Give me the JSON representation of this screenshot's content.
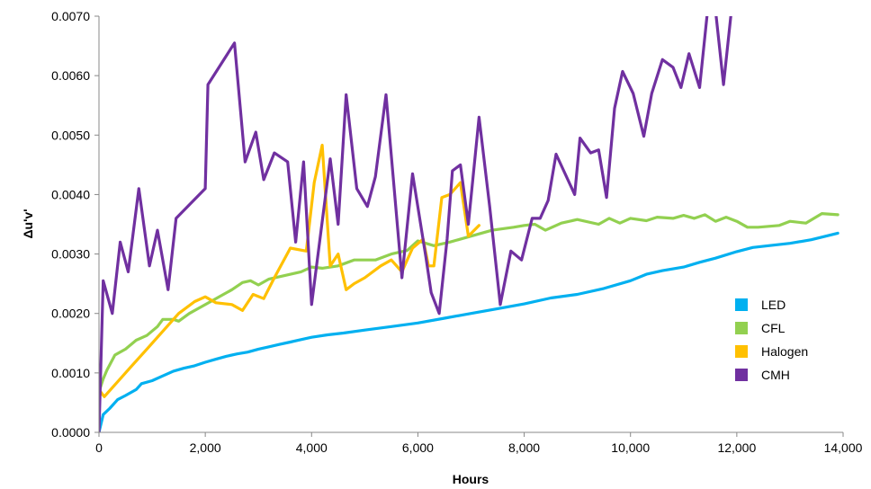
{
  "chart_data": {
    "type": "line",
    "title": "",
    "xlabel": "Hours",
    "ylabel": "Δu'v'",
    "xlim": [
      0,
      14000
    ],
    "ylim": [
      0,
      0.007
    ],
    "x_ticks": [
      0,
      2000,
      4000,
      6000,
      8000,
      10000,
      12000,
      14000
    ],
    "x_tick_labels": [
      "0",
      "2,000",
      "4,000",
      "6,000",
      "8,000",
      "10,000",
      "12,000",
      "14,000"
    ],
    "y_ticks": [
      0,
      0.001,
      0.002,
      0.003,
      0.004,
      0.005,
      0.006,
      0.007
    ],
    "y_tick_labels": [
      "0.0000",
      "0.0010",
      "0.0020",
      "0.0030",
      "0.0040",
      "0.0050",
      "0.0060",
      "0.0070"
    ],
    "grid": false,
    "legend_position": "bottom-right",
    "series": [
      {
        "name": "LED",
        "color": "#00b0f0",
        "points": [
          [
            0,
            0
          ],
          [
            80,
            0.0003
          ],
          [
            200,
            0.0004
          ],
          [
            350,
            0.00055
          ],
          [
            500,
            0.00062
          ],
          [
            700,
            0.00072
          ],
          [
            800,
            0.00082
          ],
          [
            1000,
            0.00087
          ],
          [
            1200,
            0.00095
          ],
          [
            1400,
            0.00103
          ],
          [
            1600,
            0.00108
          ],
          [
            1800,
            0.00112
          ],
          [
            2000,
            0.00118
          ],
          [
            2200,
            0.00123
          ],
          [
            2400,
            0.00128
          ],
          [
            2600,
            0.00132
          ],
          [
            2800,
            0.00135
          ],
          [
            3000,
            0.0014
          ],
          [
            3200,
            0.00144
          ],
          [
            3400,
            0.00148
          ],
          [
            3600,
            0.00152
          ],
          [
            3800,
            0.00156
          ],
          [
            4000,
            0.0016
          ],
          [
            4300,
            0.00164
          ],
          [
            4600,
            0.00167
          ],
          [
            5000,
            0.00172
          ],
          [
            5500,
            0.00178
          ],
          [
            6000,
            0.00184
          ],
          [
            6500,
            0.00192
          ],
          [
            7000,
            0.002
          ],
          [
            7500,
            0.00208
          ],
          [
            8000,
            0.00216
          ],
          [
            8500,
            0.00226
          ],
          [
            9000,
            0.00232
          ],
          [
            9500,
            0.00242
          ],
          [
            10000,
            0.00255
          ],
          [
            10300,
            0.00266
          ],
          [
            10600,
            0.00272
          ],
          [
            11000,
            0.00278
          ],
          [
            11300,
            0.00286
          ],
          [
            11600,
            0.00293
          ],
          [
            12000,
            0.00304
          ],
          [
            12300,
            0.00311
          ],
          [
            12600,
            0.00314
          ],
          [
            13000,
            0.00318
          ],
          [
            13400,
            0.00324
          ],
          [
            13900,
            0.00335
          ]
        ]
      },
      {
        "name": "CFL",
        "color": "#92d050",
        "points": [
          [
            0,
            0.00068
          ],
          [
            80,
            0.0009
          ],
          [
            150,
            0.00105
          ],
          [
            300,
            0.0013
          ],
          [
            500,
            0.0014
          ],
          [
            700,
            0.00155
          ],
          [
            900,
            0.00163
          ],
          [
            1100,
            0.00178
          ],
          [
            1200,
            0.0019
          ],
          [
            1400,
            0.0019
          ],
          [
            1500,
            0.00187
          ],
          [
            1700,
            0.002
          ],
          [
            1900,
            0.0021
          ],
          [
            2100,
            0.0022
          ],
          [
            2300,
            0.0023
          ],
          [
            2500,
            0.0024
          ],
          [
            2700,
            0.00252
          ],
          [
            2850,
            0.00255
          ],
          [
            3000,
            0.00248
          ],
          [
            3200,
            0.00258
          ],
          [
            3500,
            0.00264
          ],
          [
            3800,
            0.0027
          ],
          [
            4000,
            0.00278
          ],
          [
            4200,
            0.00276
          ],
          [
            4500,
            0.0028
          ],
          [
            4800,
            0.0029
          ],
          [
            5200,
            0.0029
          ],
          [
            5500,
            0.003
          ],
          [
            5800,
            0.00306
          ],
          [
            6000,
            0.00322
          ],
          [
            6300,
            0.00314
          ],
          [
            6600,
            0.0032
          ],
          [
            7000,
            0.0033
          ],
          [
            7400,
            0.0034
          ],
          [
            7800,
            0.00345
          ],
          [
            8000,
            0.00348
          ],
          [
            8200,
            0.0035
          ],
          [
            8400,
            0.0034
          ],
          [
            8700,
            0.00352
          ],
          [
            9000,
            0.00358
          ],
          [
            9400,
            0.0035
          ],
          [
            9600,
            0.0036
          ],
          [
            9800,
            0.00352
          ],
          [
            10000,
            0.0036
          ],
          [
            10300,
            0.00356
          ],
          [
            10500,
            0.00362
          ],
          [
            10800,
            0.0036
          ],
          [
            11000,
            0.00365
          ],
          [
            11200,
            0.0036
          ],
          [
            11400,
            0.00366
          ],
          [
            11600,
            0.00355
          ],
          [
            11800,
            0.00362
          ],
          [
            12000,
            0.00355
          ],
          [
            12200,
            0.00345
          ],
          [
            12400,
            0.00345
          ],
          [
            12800,
            0.00348
          ],
          [
            13000,
            0.00355
          ],
          [
            13300,
            0.00352
          ],
          [
            13600,
            0.00368
          ],
          [
            13900,
            0.00366
          ]
        ]
      },
      {
        "name": "Halogen",
        "color": "#ffc000",
        "points": [
          [
            0,
            0.00072
          ],
          [
            100,
            0.0006
          ],
          [
            300,
            0.0008
          ],
          [
            600,
            0.0011
          ],
          [
            900,
            0.0014
          ],
          [
            1200,
            0.0017
          ],
          [
            1500,
            0.002
          ],
          [
            1800,
            0.0022
          ],
          [
            2000,
            0.00228
          ],
          [
            2200,
            0.00218
          ],
          [
            2500,
            0.00215
          ],
          [
            2700,
            0.00205
          ],
          [
            2900,
            0.00232
          ],
          [
            3100,
            0.00225
          ],
          [
            3300,
            0.0026
          ],
          [
            3600,
            0.0031
          ],
          [
            3900,
            0.00305
          ],
          [
            4050,
            0.0042
          ],
          [
            4200,
            0.00483
          ],
          [
            4350,
            0.0028
          ],
          [
            4500,
            0.003
          ],
          [
            4650,
            0.0024
          ],
          [
            4800,
            0.0025
          ],
          [
            5000,
            0.0026
          ],
          [
            5300,
            0.0028
          ],
          [
            5500,
            0.0029
          ],
          [
            5700,
            0.0027
          ],
          [
            5900,
            0.0031
          ],
          [
            6100,
            0.00325
          ],
          [
            6200,
            0.0028
          ],
          [
            6300,
            0.0028
          ],
          [
            6450,
            0.00395
          ],
          [
            6600,
            0.004
          ],
          [
            6800,
            0.0042
          ],
          [
            6950,
            0.0033
          ],
          [
            7150,
            0.00348
          ]
        ]
      },
      {
        "name": "CMH",
        "color": "#7030a0",
        "points": [
          [
            0,
            0
          ],
          [
            80,
            0.00255
          ],
          [
            250,
            0.002
          ],
          [
            400,
            0.0032
          ],
          [
            550,
            0.0027
          ],
          [
            750,
            0.0041
          ],
          [
            950,
            0.0028
          ],
          [
            1100,
            0.0034
          ],
          [
            1300,
            0.0024
          ],
          [
            1450,
            0.0036
          ],
          [
            2000,
            0.0041
          ],
          [
            2050,
            0.00585
          ],
          [
            2550,
            0.00655
          ],
          [
            2750,
            0.00455
          ],
          [
            2950,
            0.00505
          ],
          [
            3100,
            0.00425
          ],
          [
            3300,
            0.0047
          ],
          [
            3550,
            0.00455
          ],
          [
            3700,
            0.0032
          ],
          [
            3850,
            0.00455
          ],
          [
            4000,
            0.00215
          ],
          [
            4350,
            0.0046
          ],
          [
            4500,
            0.0035
          ],
          [
            4650,
            0.00568
          ],
          [
            4850,
            0.0041
          ],
          [
            5050,
            0.0038
          ],
          [
            5200,
            0.0043
          ],
          [
            5400,
            0.00568
          ],
          [
            5700,
            0.0026
          ],
          [
            5900,
            0.00435
          ],
          [
            6150,
            0.00295
          ],
          [
            6250,
            0.00235
          ],
          [
            6400,
            0.002
          ],
          [
            6550,
            0.00325
          ],
          [
            6650,
            0.0044
          ],
          [
            6800,
            0.0045
          ],
          [
            6950,
            0.0035
          ],
          [
            7150,
            0.0053
          ],
          [
            7350,
            0.0038
          ],
          [
            7550,
            0.00215
          ],
          [
            7750,
            0.00305
          ],
          [
            7950,
            0.0029
          ],
          [
            8150,
            0.0036
          ],
          [
            8300,
            0.0036
          ],
          [
            8450,
            0.0039
          ],
          [
            8600,
            0.00468
          ],
          [
            8950,
            0.004
          ],
          [
            9050,
            0.00495
          ],
          [
            9250,
            0.0047
          ],
          [
            9400,
            0.00475
          ],
          [
            9550,
            0.00395
          ],
          [
            9700,
            0.00545
          ],
          [
            9850,
            0.00607
          ],
          [
            10050,
            0.0057
          ],
          [
            10250,
            0.00498
          ],
          [
            10400,
            0.0057
          ],
          [
            10600,
            0.00627
          ],
          [
            10800,
            0.00614
          ],
          [
            10950,
            0.0058
          ],
          [
            11100,
            0.00637
          ],
          [
            11300,
            0.0058
          ],
          [
            11450,
            0.0071
          ],
          [
            11600,
            0.0071
          ],
          [
            11750,
            0.00585
          ],
          [
            11900,
            0.0071
          ]
        ]
      }
    ]
  }
}
